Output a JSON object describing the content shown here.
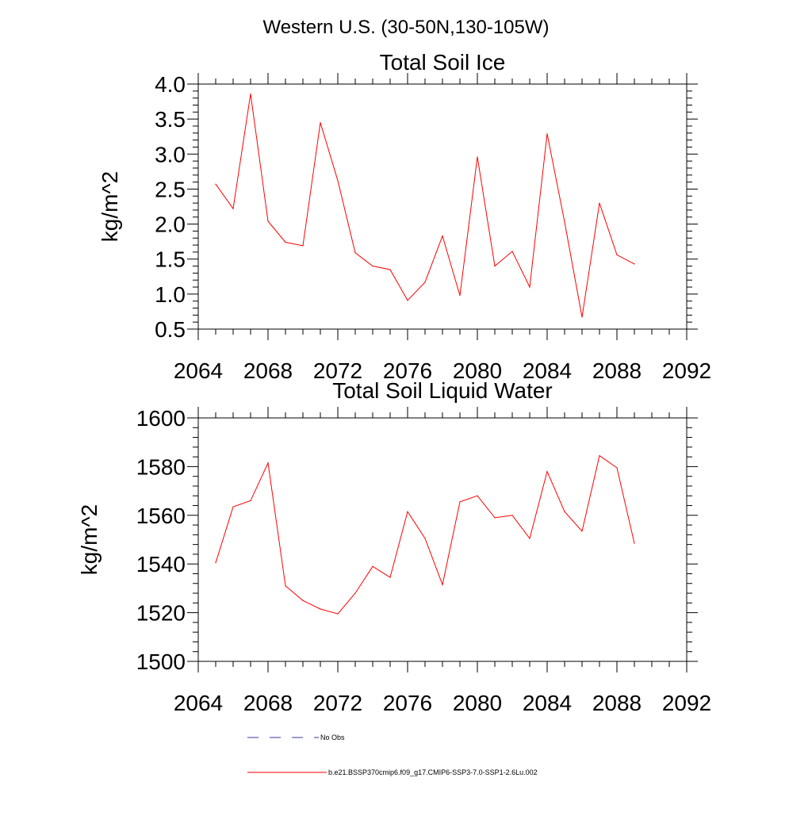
{
  "figure": {
    "main_title": "Western U.S. (30-50N,130-105W)"
  },
  "legend": [
    {
      "label": "No Obs",
      "style": "dashed",
      "color": "#3a3aa0"
    },
    {
      "label": "b.e21.BSSP370cmip6.f09_g17.CMIP6-SSP3-7.0-SSP1-2.6Lu.002",
      "style": "solid",
      "color": "#ff0000"
    }
  ],
  "chart_data": [
    {
      "type": "line",
      "title": "Total Soil Ice",
      "xlabel": "",
      "ylabel": "kg/m^2",
      "xlim": [
        2064,
        2092
      ],
      "ylim": [
        0.5,
        4.0
      ],
      "xticks": [
        2064,
        2068,
        2072,
        2076,
        2080,
        2084,
        2088,
        2092
      ],
      "yticks": [
        0.5,
        1.0,
        1.5,
        2.0,
        2.5,
        3.0,
        3.5,
        4.0
      ],
      "ytick_labels": [
        "0.5",
        "1.0",
        "1.5",
        "2.0",
        "2.5",
        "3.0",
        "3.5",
        "4.0"
      ],
      "grid": false,
      "series": [
        {
          "name": "b.e21.BSSP370cmip6.f09_g17.CMIP6-SSP3-7.0-SSP1-2.6Lu.002",
          "color": "#ff0000",
          "x": [
            2065,
            2066,
            2067,
            2068,
            2069,
            2070,
            2071,
            2072,
            2073,
            2074,
            2075,
            2076,
            2077,
            2078,
            2079,
            2080,
            2081,
            2082,
            2083,
            2084,
            2085,
            2086,
            2087,
            2088,
            2089
          ],
          "y": [
            2.57,
            2.22,
            3.86,
            2.04,
            1.74,
            1.69,
            3.45,
            2.62,
            1.59,
            1.4,
            1.35,
            0.91,
            1.17,
            1.83,
            0.98,
            2.96,
            1.4,
            1.61,
            1.1,
            3.29,
            2.03,
            0.67,
            2.3,
            1.56,
            1.43
          ]
        }
      ]
    },
    {
      "type": "line",
      "title": "Total Soil Liquid Water",
      "xlabel": "",
      "ylabel": "kg/m^2",
      "xlim": [
        2064,
        2092
      ],
      "ylim": [
        1500,
        1600
      ],
      "xticks": [
        2064,
        2068,
        2072,
        2076,
        2080,
        2084,
        2088,
        2092
      ],
      "yticks": [
        1500,
        1520,
        1540,
        1560,
        1580,
        1600
      ],
      "ytick_labels": [
        "1500",
        "1520",
        "1540",
        "1560",
        "1580",
        "1600"
      ],
      "grid": false,
      "series": [
        {
          "name": "b.e21.BSSP370cmip6.f09_g17.CMIP6-SSP3-7.0-SSP1-2.6Lu.002",
          "color": "#ff0000",
          "x": [
            2065,
            2066,
            2067,
            2068,
            2069,
            2070,
            2071,
            2072,
            2073,
            2074,
            2075,
            2076,
            2077,
            2078,
            2079,
            2080,
            2081,
            2082,
            2083,
            2084,
            2085,
            2086,
            2087,
            2088,
            2089
          ],
          "y": [
            1540.5,
            1563.5,
            1566,
            1581.5,
            1531,
            1525,
            1521.5,
            1519.5,
            1528,
            1539,
            1534.5,
            1561.5,
            1550.5,
            1531.5,
            1565.5,
            1568,
            1559,
            1560,
            1550.5,
            1578,
            1561.5,
            1553.5,
            1584.5,
            1579.5,
            1548.5
          ]
        }
      ]
    }
  ]
}
